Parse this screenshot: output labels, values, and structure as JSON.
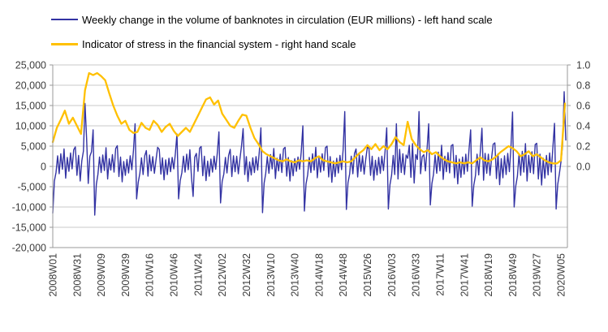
{
  "legend": {
    "banknotes": {
      "label": "Weekly change in the volume of banknotes in circulation (EUR millions) - left hand scale",
      "color": "#3333A3"
    },
    "stress": {
      "label": "Indicator of stress in the financial system - right hand scale",
      "color": "#FFC000"
    }
  },
  "colors": {
    "banknotes_line": "#3333A3",
    "stress_line": "#FFC000",
    "gridline": "#C8C8C8",
    "axis_line": "#9A9A9A",
    "tick_text": "#3B3B3B",
    "background": "#FFFFFF"
  },
  "chart_data": {
    "type": "line",
    "title": "",
    "legend_position": "top-left",
    "grid": "horizontal-only",
    "x_axis": {
      "total_weeks": 639,
      "tick_step_weeks": 30,
      "labels": [
        {
          "label": "2008W01",
          "week": 0
        },
        {
          "label": "2008W31",
          "week": 30
        },
        {
          "label": "2009W09",
          "week": 60
        },
        {
          "label": "2009W39",
          "week": 90
        },
        {
          "label": "2010W16",
          "week": 120
        },
        {
          "label": "2010W46",
          "week": 150
        },
        {
          "label": "2011W24",
          "week": 180
        },
        {
          "label": "2012W02",
          "week": 210
        },
        {
          "label": "2012W32",
          "week": 240
        },
        {
          "label": "2013W10",
          "week": 270
        },
        {
          "label": "2013W40",
          "week": 300
        },
        {
          "label": "2014W18",
          "week": 330
        },
        {
          "label": "2014W48",
          "week": 360
        },
        {
          "label": "2015W26",
          "week": 390
        },
        {
          "label": "2016W03",
          "week": 420
        },
        {
          "label": "2016W33",
          "week": 450
        },
        {
          "label": "2017W11",
          "week": 480
        },
        {
          "label": "2017W41",
          "week": 510
        },
        {
          "label": "2018W19",
          "week": 540
        },
        {
          "label": "2018W49",
          "week": 570
        },
        {
          "label": "2019W27",
          "week": 600
        },
        {
          "label": "2020W05",
          "week": 630
        }
      ]
    },
    "left_axis": {
      "min": -20000,
      "max": 25000,
      "step": 5000,
      "ticks": [
        "25,000",
        "20,000",
        "15,000",
        "10,000",
        "5,000",
        "0",
        "-5,000",
        "-10,000",
        "-15,000",
        "-20,000"
      ]
    },
    "right_axis": {
      "min_labeled": 0.0,
      "max": 1.0,
      "step": 0.2,
      "ticks": [
        "1.0",
        "0.8",
        "0.6",
        "0.4",
        "0.2",
        "0.0"
      ]
    },
    "series": [
      {
        "name": "Weekly change in the volume of banknotes in circulation (EUR millions)",
        "axis": "left",
        "color": "#3333A3",
        "width": 1.4,
        "start_week": 0,
        "step_weeks": 2,
        "values": [
          -11500,
          -3600,
          -1500,
          2600,
          -1800,
          3100,
          -700,
          4300,
          -2900,
          2200,
          -1200,
          3300,
          -600,
          4100,
          4800,
          -2200,
          2700,
          -3600,
          1400,
          3800,
          15500,
          6800,
          -4200,
          2500,
          3600,
          9000,
          -12000,
          -4400,
          -2000,
          2300,
          -1500,
          2800,
          -1000,
          4600,
          -3100,
          1900,
          -900,
          2900,
          -1400,
          4400,
          5100,
          -2500,
          2300,
          -3800,
          1200,
          -2200,
          1700,
          -1600,
          2600,
          -800,
          3900,
          10500,
          -8000,
          -3900,
          -1700,
          2100,
          -2000,
          2600,
          3900,
          -2400,
          2800,
          -1100,
          2400,
          -1700,
          1600,
          4700,
          4200,
          -1900,
          2100,
          -3300,
          1600,
          -2000,
          2000,
          -1300,
          2200,
          -600,
          3100,
          8000,
          -8000,
          -3500,
          -1600,
          2500,
          -1400,
          3000,
          -800,
          4100,
          -2700,
          -7400,
          2300,
          3200,
          -1200,
          4500,
          4900,
          -2300,
          2500,
          -3500,
          1300,
          -2400,
          1800,
          -1400,
          2500,
          -700,
          3300,
          8500,
          -9000,
          -3700,
          -1900,
          2200,
          -1600,
          2700,
          4200,
          -2500,
          2600,
          -1300,
          2500,
          -1800,
          1700,
          5000,
          9300,
          -2000,
          2400,
          -3700,
          1100,
          -2100,
          2100,
          -1500,
          2400,
          -900,
          3500,
          9500,
          -11400,
          -4100,
          -1800,
          2400,
          -1700,
          2900,
          -600,
          4400,
          -3000,
          2000,
          -1100,
          3000,
          -1500,
          4300,
          4700,
          -2400,
          2200,
          -3600,
          1400,
          -2300,
          1900,
          -1200,
          2300,
          -700,
          3600,
          10000,
          -11000,
          -4300,
          -2100,
          2200,
          -1500,
          3100,
          -900,
          4700,
          -2800,
          2100,
          -1400,
          3100,
          -1000,
          4600,
          5000,
          -2600,
          2400,
          -3900,
          1300,
          -2500,
          2000,
          -1600,
          2700,
          -800,
          4100,
          13500,
          -10600,
          -4000,
          -1900,
          2500,
          -1800,
          3200,
          4300,
          -2600,
          2900,
          -1200,
          2600,
          -1900,
          1800,
          4800,
          4400,
          -2200,
          2500,
          -3400,
          1500,
          -2100,
          2200,
          -1700,
          2500,
          -1000,
          3800,
          9500,
          -10500,
          -4500,
          -2200,
          2700,
          -2000,
          10500,
          -3100,
          4200,
          -1500,
          3100,
          -2000,
          2800,
          2000,
          5200,
          -2700,
          5600,
          -4100,
          2900,
          1700,
          13500,
          -1800,
          2400,
          2900,
          -1100,
          4300,
          10500,
          -9500,
          -4200,
          -2000,
          2800,
          -1700,
          3500,
          -1100,
          5200,
          -3200,
          2500,
          -1300,
          3400,
          -1600,
          5100,
          5400,
          -2800,
          2700,
          -4300,
          1800,
          -2700,
          2300,
          -1900,
          3000,
          -1200,
          4200,
          9000,
          -9800,
          -4600,
          -2300,
          3000,
          -2100,
          3600,
          9400,
          -3400,
          3200,
          -1700,
          3000,
          -2200,
          2100,
          5500,
          5800,
          -3000,
          3100,
          -4500,
          1900,
          -2800,
          2600,
          -2000,
          3200,
          -1300,
          4600,
          13400,
          -10000,
          -4800,
          -2400,
          3100,
          -2200,
          3700,
          -1400,
          5600,
          -3600,
          2700,
          -1500,
          3600,
          -1800,
          5400,
          5700,
          -3100,
          3000,
          -4600,
          2000,
          -2900,
          2700,
          -2100,
          3300,
          -1400,
          4700,
          10600,
          -10500,
          -4400,
          -1800,
          1200,
          5000,
          18400,
          6500
        ]
      },
      {
        "name": "Indicator of stress in the financial system",
        "axis": "right",
        "color": "#FFC000",
        "width": 2.3,
        "start_week": 0,
        "step_weeks": 5,
        "values": [
          0.24,
          0.38,
          0.46,
          0.55,
          0.42,
          0.48,
          0.4,
          0.32,
          0.75,
          0.92,
          0.9,
          0.92,
          0.89,
          0.85,
          0.72,
          0.6,
          0.5,
          0.42,
          0.45,
          0.36,
          0.33,
          0.34,
          0.43,
          0.38,
          0.36,
          0.45,
          0.41,
          0.34,
          0.39,
          0.42,
          0.35,
          0.3,
          0.34,
          0.38,
          0.34,
          0.42,
          0.5,
          0.58,
          0.66,
          0.68,
          0.61,
          0.65,
          0.52,
          0.46,
          0.4,
          0.38,
          0.45,
          0.51,
          0.5,
          0.38,
          0.28,
          0.22,
          0.15,
          0.12,
          0.1,
          0.08,
          0.06,
          0.05,
          0.07,
          0.05,
          0.04,
          0.06,
          0.05,
          0.06,
          0.05,
          0.08,
          0.1,
          0.06,
          0.05,
          0.04,
          0.03,
          0.04,
          0.05,
          0.04,
          0.05,
          0.09,
          0.13,
          0.16,
          0.21,
          0.17,
          0.22,
          0.16,
          0.2,
          0.17,
          0.22,
          0.29,
          0.24,
          0.21,
          0.44,
          0.27,
          0.21,
          0.17,
          0.14,
          0.16,
          0.12,
          0.14,
          0.1,
          0.07,
          0.05,
          0.04,
          0.03,
          0.04,
          0.03,
          0.04,
          0.03,
          0.06,
          0.09,
          0.06,
          0.05,
          0.07,
          0.1,
          0.14,
          0.17,
          0.2,
          0.18,
          0.15,
          0.1,
          0.12,
          0.15,
          0.1,
          0.12,
          0.09,
          0.06,
          0.04,
          0.03,
          0.03,
          0.06,
          0.62
        ]
      }
    ]
  }
}
